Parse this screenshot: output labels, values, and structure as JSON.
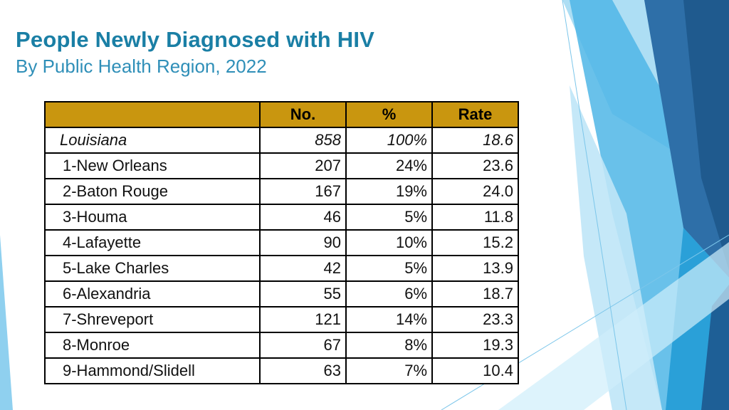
{
  "slide": {
    "title": "People Newly Diagnosed with HIV",
    "subtitle": "By Public Health Region, 2022"
  },
  "table": {
    "headers": [
      "",
      "No.",
      "%",
      "Rate"
    ],
    "state_row": {
      "region": "Louisiana",
      "number": "858",
      "percent": "100%",
      "rate": "18.6"
    },
    "rows": [
      {
        "region": "1-New Orleans",
        "number": "207",
        "percent": "24%",
        "rate": "23.6"
      },
      {
        "region": "2-Baton Rouge",
        "number": "167",
        "percent": "19%",
        "rate": "24.0"
      },
      {
        "region": "3-Houma",
        "number": "46",
        "percent": "5%",
        "rate": "11.8"
      },
      {
        "region": "4-Lafayette",
        "number": "90",
        "percent": "10%",
        "rate": "15.2"
      },
      {
        "region": "5-Lake Charles",
        "number": "42",
        "percent": "5%",
        "rate": "13.9"
      },
      {
        "region": "6-Alexandria",
        "number": "55",
        "percent": "6%",
        "rate": "18.7"
      },
      {
        "region": "7-Shreveport",
        "number": "121",
        "percent": "14%",
        "rate": "23.3"
      },
      {
        "region": "8-Monroe",
        "number": "67",
        "percent": "8%",
        "rate": "19.3"
      },
      {
        "region": "9-Hammond/Slidell",
        "number": "63",
        "percent": "7%",
        "rate": "10.4"
      }
    ]
  },
  "colors": {
    "title": "#1a7fa5",
    "subtitle": "#2f8fb8",
    "header_fill": "#c9960f",
    "accent_dark": "#1e5f96",
    "accent_mid": "#2aa0d8",
    "accent_light": "#8fd0ef"
  }
}
